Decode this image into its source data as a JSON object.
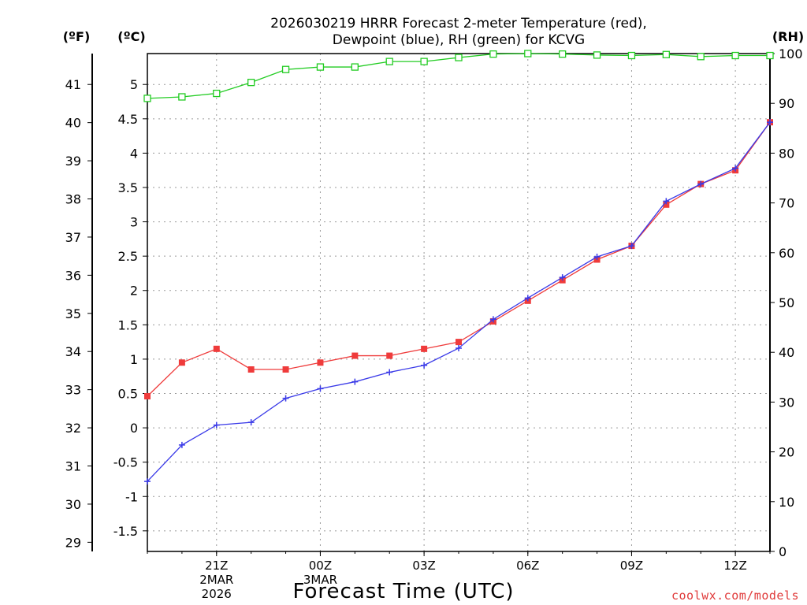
{
  "chart_data": {
    "type": "line",
    "title_line1": "2026030219 HRRR Forecast 2-meter Temperature (red),",
    "title_line2": "Dewpoint (blue), RH (green) for KCVG",
    "left_unit_f": "(ºF)",
    "left_unit_c": "(ºC)",
    "right_unit": "(RH)",
    "xlabel": "Forecast Time (UTC)",
    "credit": "coolwx.com/models",
    "x_hours": [
      19,
      20,
      21,
      22,
      23,
      24,
      25,
      26,
      27,
      28,
      29,
      30,
      31,
      32,
      33,
      34,
      35,
      36,
      37
    ],
    "x_range": [
      19,
      37
    ],
    "x_ticks": [
      {
        "hour": 21,
        "label": "21Z",
        "date_line1": "2MAR",
        "date_line2": "2026"
      },
      {
        "hour": 24,
        "label": "00Z",
        "date_line1": "3MAR",
        "date_line2": ""
      },
      {
        "hour": 27,
        "label": "03Z",
        "date_line1": "",
        "date_line2": ""
      },
      {
        "hour": 30,
        "label": "06Z",
        "date_line1": "",
        "date_line2": ""
      },
      {
        "hour": 33,
        "label": "09Z",
        "date_line1": "",
        "date_line2": ""
      },
      {
        "hour": 36,
        "label": "12Z",
        "date_line1": "",
        "date_line2": ""
      }
    ],
    "celsius_range": [
      -1.8,
      5.45
    ],
    "celsius_ticks": [
      -1.5,
      -1,
      -0.5,
      0,
      0.5,
      1,
      1.5,
      2,
      2.5,
      3,
      3.5,
      4,
      4.5,
      5
    ],
    "celsius_tick_labels": [
      "-1.5",
      "-1",
      "-0.5",
      "0",
      "0.5",
      "1",
      "1.5",
      "2",
      "2.5",
      "3",
      "3.5",
      "4",
      "4.5",
      "5"
    ],
    "fahrenheit_ticks": [
      29,
      30,
      31,
      32,
      33,
      34,
      35,
      36,
      37,
      38,
      39,
      40,
      41
    ],
    "fahrenheit_tick_labels": [
      "29",
      "30",
      "31",
      "32",
      "33",
      "34",
      "35",
      "36",
      "37",
      "38",
      "39",
      "40",
      "41"
    ],
    "rh_range": [
      0,
      100
    ],
    "rh_ticks": [
      0,
      10,
      20,
      30,
      40,
      50,
      60,
      70,
      80,
      90,
      100
    ],
    "rh_tick_labels": [
      "0",
      "10",
      "20",
      "30",
      "40",
      "50",
      "60",
      "70",
      "80",
      "90",
      "100"
    ],
    "grid": true,
    "series": [
      {
        "name": "2-meter Temperature",
        "color": "#ef3b3b",
        "marker": "filled-square",
        "axis": "celsius",
        "values": [
          0.46,
          0.95,
          1.15,
          0.85,
          0.85,
          0.95,
          1.05,
          1.05,
          1.15,
          1.25,
          1.55,
          1.85,
          2.15,
          2.45,
          2.65,
          3.25,
          3.55,
          3.75,
          4.45
        ]
      },
      {
        "name": "Dewpoint",
        "color": "#3a3ae8",
        "marker": "plus",
        "axis": "celsius",
        "values": [
          -0.78,
          -0.25,
          0.04,
          0.08,
          0.43,
          0.57,
          0.67,
          0.81,
          0.91,
          1.16,
          1.58,
          1.89,
          2.19,
          2.49,
          2.65,
          3.3,
          3.55,
          3.78,
          4.45
        ]
      },
      {
        "name": "RH",
        "color": "#22cc22",
        "marker": "open-square",
        "axis": "rh",
        "values": [
          91,
          91.3,
          92,
          94.2,
          96.8,
          97.3,
          97.3,
          98.4,
          98.4,
          99.2,
          99.9,
          100,
          99.9,
          99.7,
          99.6,
          99.8,
          99.4,
          99.6,
          99.6
        ]
      }
    ]
  }
}
